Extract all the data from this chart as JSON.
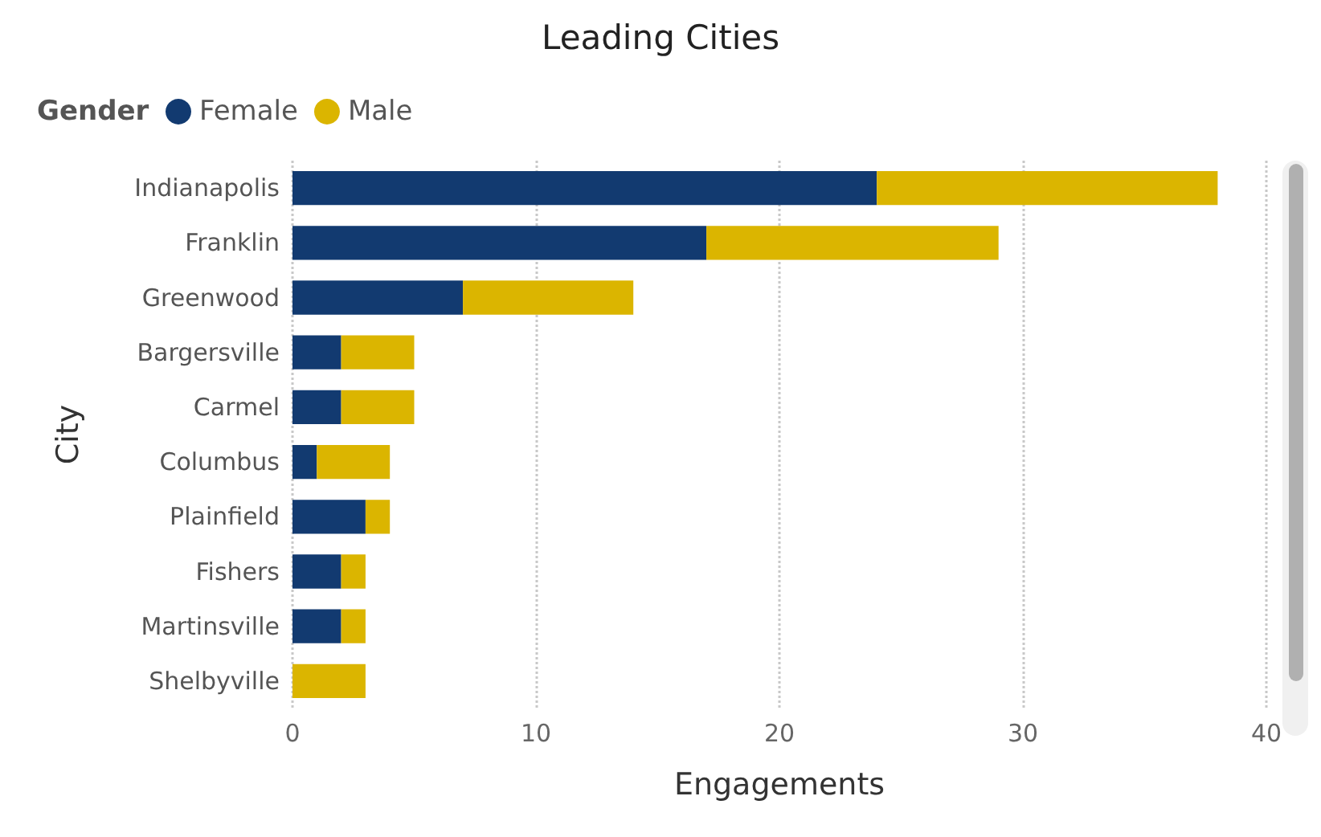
{
  "chart_data": {
    "type": "bar",
    "orientation": "horizontal",
    "stacked": true,
    "title": "Leading Cities",
    "xlabel": "Engagements",
    "ylabel": "City",
    "legend_title": "Gender",
    "legend": "top left",
    "grid": "x",
    "categories": [
      "Indianapolis",
      "Franklin",
      "Greenwood",
      "Bargersville",
      "Carmel",
      "Columbus",
      "Plainfield",
      "Fishers",
      "Martinsville",
      "Shelbyville"
    ],
    "series": [
      {
        "name": "Female",
        "color": "#123a70",
        "values": [
          24,
          17,
          7,
          2,
          2,
          1,
          3,
          2,
          2,
          0
        ]
      },
      {
        "name": "Male",
        "color": "#dbb500",
        "values": [
          14,
          12,
          7,
          3,
          3,
          3,
          1,
          1,
          1,
          3
        ]
      }
    ],
    "xlim": [
      0,
      40
    ],
    "xticks": [
      0,
      10,
      20,
      30,
      40
    ]
  }
}
